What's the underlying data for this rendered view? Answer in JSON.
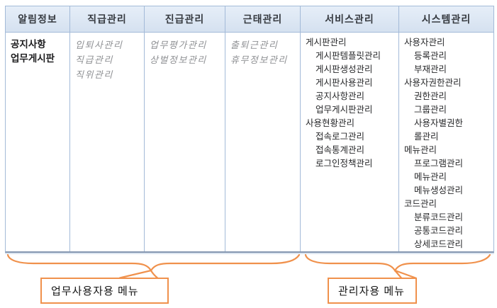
{
  "colors": {
    "table_border": "#a3bad8",
    "table_border_heavy": "#8496b0",
    "header_bg": "#dce6f2",
    "header_text": "#363a40",
    "item_text": "#28292b",
    "item_muted": "#8f9194",
    "brace": "#f0914c"
  },
  "table": {
    "columns": [
      {
        "id": "notice-info",
        "header": "알림정보",
        "item_style": "primary",
        "items": [
          {
            "label": "공지사항",
            "indent": 0
          },
          {
            "label": "업무게시판",
            "indent": 0
          }
        ]
      },
      {
        "id": "position-mgmt",
        "header": "직급관리",
        "item_style": "muted-italic",
        "items": [
          {
            "label": "입퇴사관리",
            "indent": 0
          },
          {
            "label": "직급관리",
            "indent": 0
          },
          {
            "label": "직위관리",
            "indent": 0
          }
        ]
      },
      {
        "id": "promotion-mgmt",
        "header": "진급관리",
        "item_style": "muted-italic",
        "items": [
          {
            "label": "업무평가관리",
            "indent": 0
          },
          {
            "label": "상벌정보관리",
            "indent": 0
          }
        ]
      },
      {
        "id": "attendance-mgmt",
        "header": "근태관리",
        "item_style": "muted-italic",
        "items": [
          {
            "label": "출퇴근관리",
            "indent": 0
          },
          {
            "label": "휴무정보관리",
            "indent": 0
          }
        ]
      },
      {
        "id": "service-mgmt",
        "header": "서비스관리",
        "item_style": "plain",
        "items": [
          {
            "label": "게시판관리",
            "indent": 0
          },
          {
            "label": "게시판템플릿관리",
            "indent": 1
          },
          {
            "label": "게시판생성관리",
            "indent": 1
          },
          {
            "label": "게시판사용관리",
            "indent": 1
          },
          {
            "label": "공지사항관리",
            "indent": 1
          },
          {
            "label": "업무게시판관리",
            "indent": 1
          },
          {
            "label": "사용현황관리",
            "indent": 0
          },
          {
            "label": "접속로그관리",
            "indent": 1
          },
          {
            "label": "접속통계관리",
            "indent": 1
          },
          {
            "label": "로그인정책관리",
            "indent": 1
          }
        ]
      },
      {
        "id": "system-mgmt",
        "header": "시스템관리",
        "item_style": "plain",
        "items": [
          {
            "label": "사용자관리",
            "indent": 0
          },
          {
            "label": "등록관리",
            "indent": 1
          },
          {
            "label": "부재관리",
            "indent": 1
          },
          {
            "label": "사용자권한관리",
            "indent": 0
          },
          {
            "label": "권한관리",
            "indent": 1
          },
          {
            "label": "그룹관리",
            "indent": 1
          },
          {
            "label": "사용자별권한",
            "indent": 1
          },
          {
            "label": "롤관리",
            "indent": 1
          },
          {
            "label": "메뉴관리",
            "indent": 0
          },
          {
            "label": "프로그램관리",
            "indent": 1
          },
          {
            "label": "메뉴관리",
            "indent": 1
          },
          {
            "label": "메뉴생성관리",
            "indent": 1
          },
          {
            "label": "코드관리",
            "indent": 0
          },
          {
            "label": "분류코드관리",
            "indent": 1
          },
          {
            "label": "공통코드관리",
            "indent": 1
          },
          {
            "label": "상세코드관리",
            "indent": 1
          }
        ]
      }
    ]
  },
  "annotations": {
    "left_group": {
      "label": "업무사용자용 메뉴"
    },
    "right_group": {
      "label": "관리자용 메뉴"
    }
  }
}
